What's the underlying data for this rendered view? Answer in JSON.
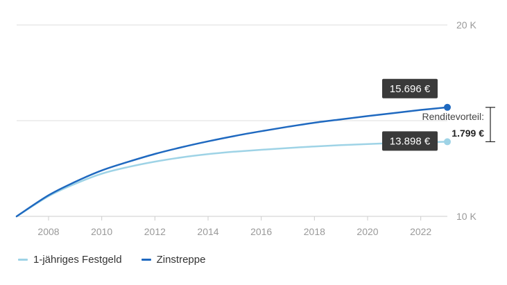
{
  "chart_data": {
    "type": "line",
    "title": "",
    "xlabel": "",
    "ylabel": "",
    "x_ticks": [
      "2008",
      "2010",
      "2012",
      "2014",
      "2016",
      "2018",
      "2020",
      "2022"
    ],
    "y_ticks": [
      "10 K",
      "20 K"
    ],
    "xlim": [
      2006.8,
      2023.0
    ],
    "ylim": [
      10000,
      20000
    ],
    "grid": "horizontal",
    "series": [
      {
        "name": "1-jähriges Festgeld",
        "color": "#9ed3e6",
        "x": [
          2006.8,
          2008,
          2009,
          2010,
          2011,
          2012,
          2013,
          2014,
          2015,
          2016,
          2017,
          2018,
          2019,
          2020,
          2021,
          2022,
          2023
        ],
        "y": [
          10000,
          11050,
          11700,
          12230,
          12580,
          12860,
          13080,
          13250,
          13380,
          13480,
          13570,
          13650,
          13720,
          13780,
          13830,
          13870,
          13898
        ]
      },
      {
        "name": "Zinstreppe",
        "color": "#1f69c0",
        "x": [
          2006.8,
          2008,
          2009,
          2010,
          2011,
          2012,
          2013,
          2014,
          2015,
          2016,
          2017,
          2018,
          2019,
          2020,
          2021,
          2022,
          2023
        ],
        "y": [
          10000,
          11100,
          11800,
          12400,
          12850,
          13260,
          13610,
          13920,
          14200,
          14450,
          14680,
          14890,
          15070,
          15240,
          15400,
          15560,
          15696
        ]
      }
    ],
    "end_labels": [
      {
        "series": "Zinstreppe",
        "text": "15.696 €"
      },
      {
        "series": "1-jähriges Festgeld",
        "text": "13.898 €"
      }
    ],
    "annotation": {
      "label": "Renditevorteil:",
      "value": "1.799 €"
    }
  },
  "legend": [
    {
      "label": "1-jähriges Festgeld",
      "color": "#9ed3e6"
    },
    {
      "label": "Zinstreppe",
      "color": "#1f69c0"
    }
  ]
}
